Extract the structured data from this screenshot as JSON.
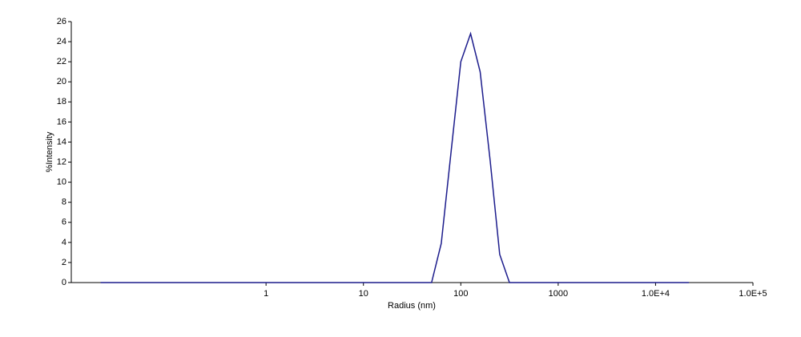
{
  "chart_data": {
    "type": "line",
    "xscale": "log",
    "grid": false,
    "color": "#1c1c8c",
    "x_label": "Radius (nm)",
    "y_label": "%Intensity",
    "x": [
      0.02,
      0.1,
      1,
      10,
      50.1,
      63,
      79.4,
      100,
      126,
      158,
      200,
      251,
      316,
      1000,
      10000,
      22000
    ],
    "values": [
      0,
      0,
      0,
      0,
      0,
      3.9,
      13,
      22,
      24.8,
      21,
      12.2,
      2.8,
      0,
      0,
      0,
      0
    ],
    "xlim": [
      0.01,
      100000
    ],
    "xticks": [
      1,
      10,
      100,
      1000,
      {
        "value": 10000,
        "label": "1.0E+4"
      },
      {
        "value": 100000,
        "label": "1.0E+5"
      }
    ],
    "ylim": [
      0,
      26
    ],
    "yticks": [
      0,
      2,
      4,
      6,
      8,
      10,
      12,
      14,
      16,
      18,
      20,
      22,
      24,
      26
    ]
  }
}
